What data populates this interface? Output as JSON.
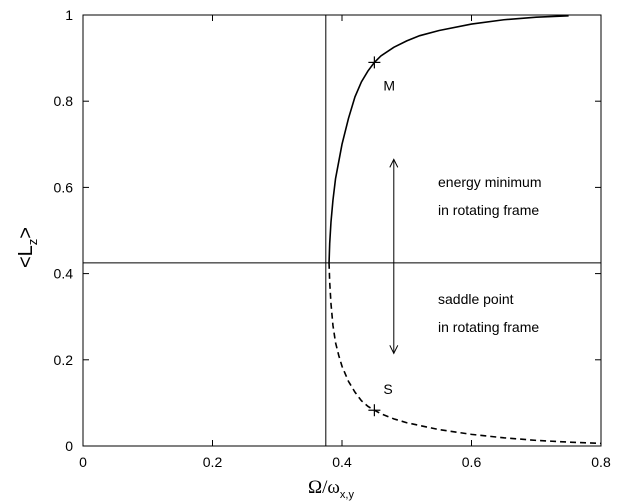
{
  "chart_data": {
    "type": "line",
    "xlabel_main": "Ω/ω",
    "xlabel_sub": "x,y",
    "ylabel_main": "<L",
    "ylabel_sub": "z",
    "ylabel_tail": ">",
    "xlim": [
      0,
      0.8
    ],
    "ylim": [
      0,
      1
    ],
    "xticks": [
      0,
      0.2,
      0.4,
      0.6,
      0.8
    ],
    "xtick_labels": [
      "0",
      "0.2",
      "0.4",
      "0.6",
      "0.8"
    ],
    "yticks": [
      0,
      0.2,
      0.4,
      0.6,
      0.8,
      1
    ],
    "ytick_labels": [
      "0",
      "0.2",
      "0.4",
      "0.6",
      "0.8",
      "1"
    ],
    "grid": false,
    "reference_lines": {
      "vertical_x": 0.375,
      "horizontal_y": 0.425
    },
    "series": [
      {
        "style": "solid",
        "x": [
          0.38,
          0.381,
          0.383,
          0.386,
          0.39,
          0.395,
          0.4,
          0.41,
          0.42,
          0.43,
          0.44,
          0.45,
          0.46,
          0.48,
          0.5,
          0.52,
          0.55,
          0.6,
          0.65,
          0.7,
          0.75
        ],
        "y": [
          0.425,
          0.47,
          0.52,
          0.57,
          0.62,
          0.66,
          0.7,
          0.76,
          0.81,
          0.845,
          0.87,
          0.89,
          0.905,
          0.925,
          0.94,
          0.952,
          0.964,
          0.979,
          0.989,
          0.995,
          0.998
        ]
      },
      {
        "style": "dashed",
        "x": [
          0.38,
          0.381,
          0.383,
          0.386,
          0.39,
          0.395,
          0.4,
          0.41,
          0.42,
          0.43,
          0.44,
          0.45,
          0.46,
          0.48,
          0.5,
          0.55,
          0.6,
          0.65,
          0.7,
          0.75,
          0.8
        ],
        "y": [
          0.425,
          0.38,
          0.33,
          0.28,
          0.24,
          0.21,
          0.185,
          0.15,
          0.125,
          0.105,
          0.092,
          0.083,
          0.075,
          0.063,
          0.054,
          0.038,
          0.027,
          0.019,
          0.013,
          0.009,
          0.006
        ]
      }
    ],
    "markers": [
      {
        "label": "M",
        "x": 0.45,
        "y": 0.89
      },
      {
        "label": "S",
        "x": 0.45,
        "y": 0.083
      }
    ],
    "annotations": {
      "upper_line1": "energy minimum",
      "upper_line2": "in rotating frame",
      "lower_line1": "saddle point",
      "lower_line2": "in rotating frame"
    },
    "double_arrow": {
      "x": 0.48,
      "y_top": 0.665,
      "y_bottom": 0.215
    }
  }
}
